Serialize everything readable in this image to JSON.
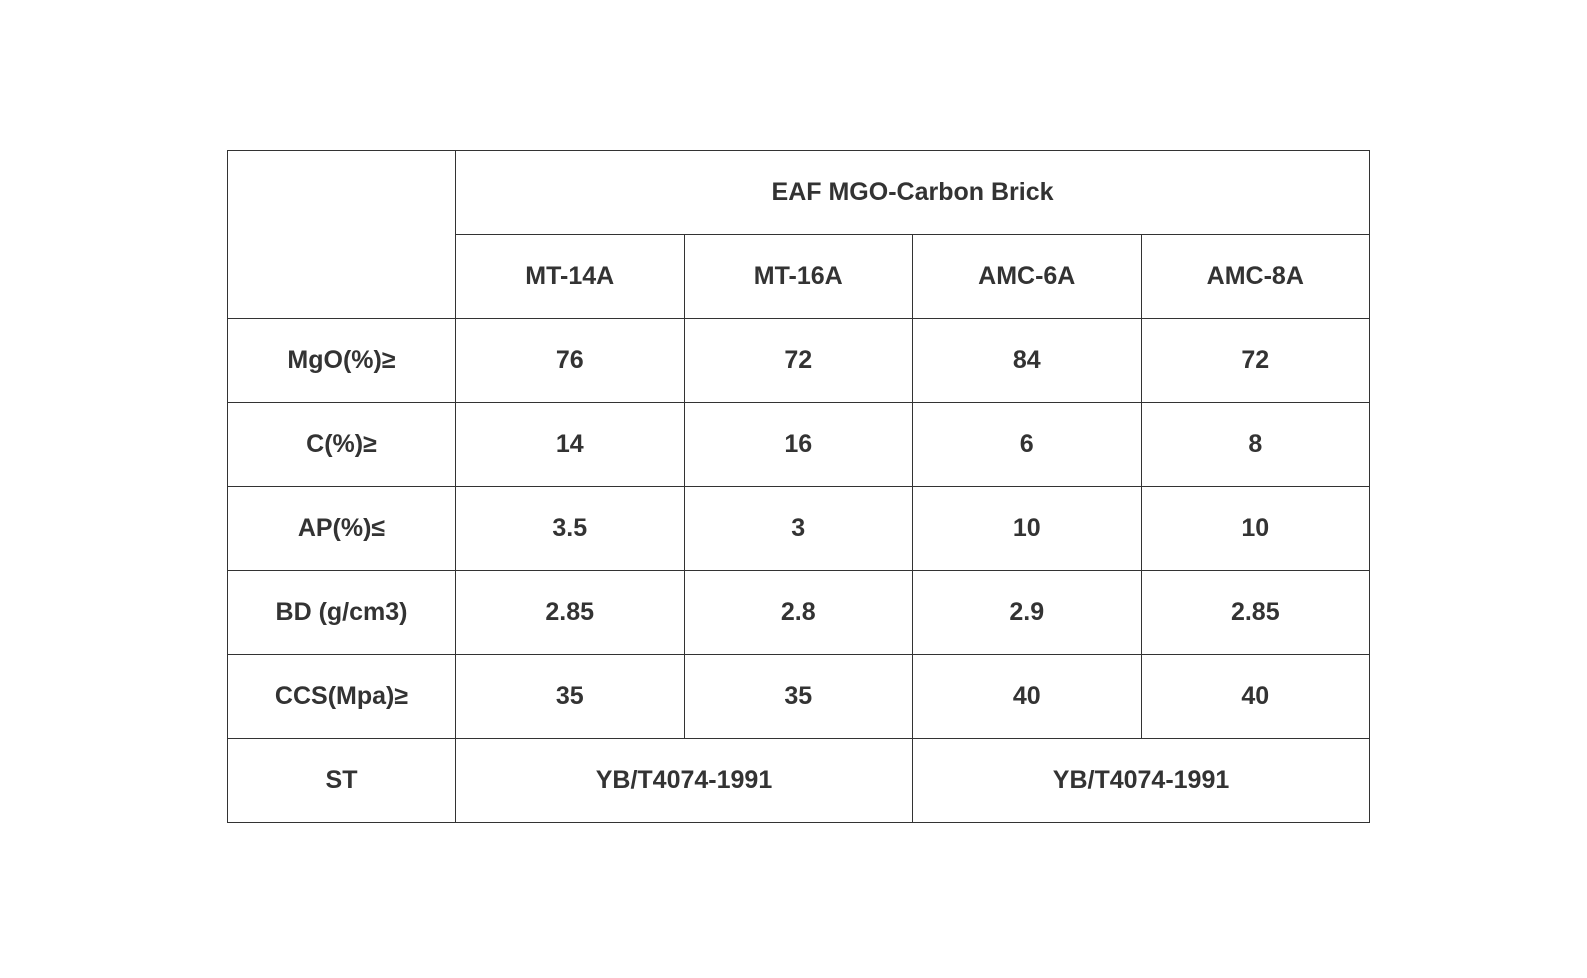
{
  "table": {
    "title": "EAF MGO-Carbon Brick",
    "columns": [
      "MT-14A",
      "MT-16A",
      "AMC-6A",
      "AMC-8A"
    ],
    "rows": [
      {
        "label": "MgO(%)≥",
        "values": [
          "76",
          "72",
          "84",
          "72"
        ]
      },
      {
        "label": "C(%)≥",
        "values": [
          "14",
          "16",
          "6",
          "8"
        ]
      },
      {
        "label": "AP(%)≤",
        "values": [
          "3.5",
          "3",
          "10",
          "10"
        ]
      },
      {
        "label": "BD (g/cm3)",
        "values": [
          "2.85",
          "2.8",
          "2.9",
          "2.85"
        ]
      },
      {
        "label": "CCS(Mpa)≥",
        "values": [
          "35",
          "35",
          "40",
          "40"
        ]
      }
    ],
    "standard_row": {
      "label": "ST",
      "values": [
        "YB/T4074-1991",
        "YB/T4074-1991"
      ]
    }
  }
}
